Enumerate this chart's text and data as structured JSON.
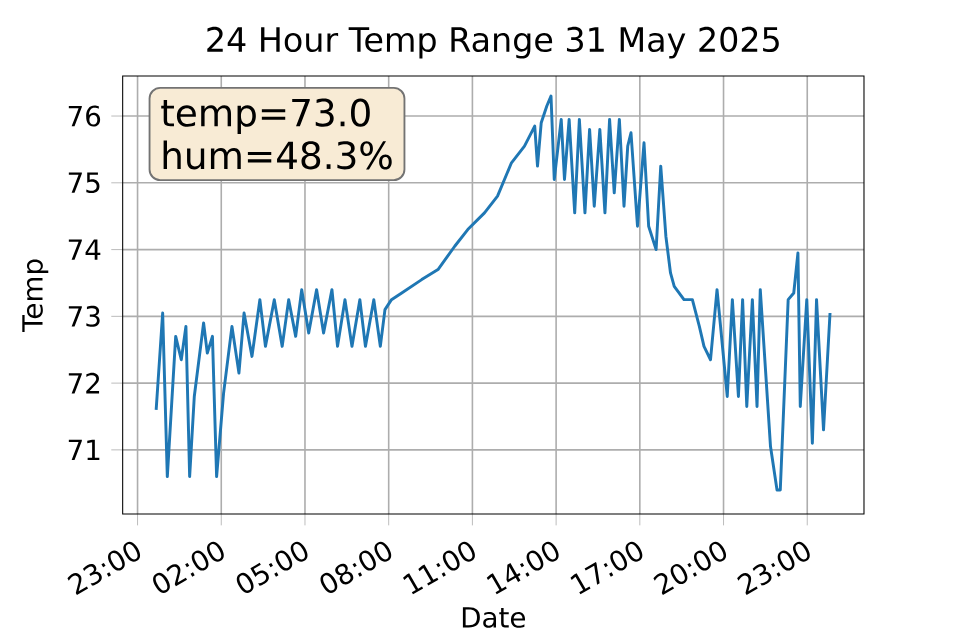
{
  "chart_data": {
    "type": "line",
    "title": "24 Hour Temp Range 31 May 2025",
    "xlabel": "Date",
    "ylabel": "Temp",
    "annotations": [
      "temp=73.0",
      "hum=48.3%"
    ],
    "xlim": [
      "2025-05-30T22:28",
      "2025-06-01T01:02"
    ],
    "ylim": [
      70.04,
      76.6
    ],
    "xticks": [
      {
        "value": "2025-05-30T23:00",
        "label": "23:00"
      },
      {
        "value": "2025-05-31T02:00",
        "label": "02:00"
      },
      {
        "value": "2025-05-31T05:00",
        "label": "05:00"
      },
      {
        "value": "2025-05-31T08:00",
        "label": "08:00"
      },
      {
        "value": "2025-05-31T11:00",
        "label": "11:00"
      },
      {
        "value": "2025-05-31T14:00",
        "label": "14:00"
      },
      {
        "value": "2025-05-31T17:00",
        "label": "17:00"
      },
      {
        "value": "2025-05-31T20:00",
        "label": "20:00"
      },
      {
        "value": "2025-05-31T23:00",
        "label": "23:00"
      }
    ],
    "yticks": [
      71,
      72,
      73,
      74,
      75,
      76
    ],
    "grid": true,
    "series": [
      {
        "color": "#1f77b4",
        "x": [
          "2025-05-30T23:40",
          "2025-05-30T23:54",
          "2025-05-31T00:04",
          "2025-05-31T00:22",
          "2025-05-31T00:34",
          "2025-05-31T00:44",
          "2025-05-31T00:52",
          "2025-05-31T01:02",
          "2025-05-31T01:22",
          "2025-05-31T01:30",
          "2025-05-31T01:41",
          "2025-05-31T01:50",
          "2025-05-31T02:05",
          "2025-05-31T02:23",
          "2025-05-31T02:38",
          "2025-05-31T02:49",
          "2025-05-31T03:06",
          "2025-05-31T03:23",
          "2025-05-31T03:35",
          "2025-05-31T03:54",
          "2025-05-31T04:11",
          "2025-05-31T04:25",
          "2025-05-31T04:40",
          "2025-05-31T04:53",
          "2025-05-31T05:08",
          "2025-05-31T05:25",
          "2025-05-31T05:40",
          "2025-05-31T05:58",
          "2025-05-31T06:10",
          "2025-05-31T06:26",
          "2025-05-31T06:41",
          "2025-05-31T06:58",
          "2025-05-31T07:10",
          "2025-05-31T07:28",
          "2025-05-31T07:42",
          "2025-05-31T07:52",
          "2025-05-31T08:06",
          "2025-05-31T08:28",
          "2025-05-31T09:11",
          "2025-05-31T09:46",
          "2025-05-31T10:22",
          "2025-05-31T10:50",
          "2025-05-31T11:26",
          "2025-05-31T11:54",
          "2025-05-31T12:24",
          "2025-05-31T12:52",
          "2025-05-31T13:14",
          "2025-05-31T13:20",
          "2025-05-31T13:28",
          "2025-05-31T13:40",
          "2025-05-31T13:49",
          "2025-05-31T13:56",
          "2025-05-31T14:11",
          "2025-05-31T14:18",
          "2025-05-31T14:28",
          "2025-05-31T14:40",
          "2025-05-31T14:50",
          "2025-05-31T15:02",
          "2025-05-31T15:12",
          "2025-05-31T15:22",
          "2025-05-31T15:34",
          "2025-05-31T15:45",
          "2025-05-31T15:55",
          "2025-05-31T16:05",
          "2025-05-31T16:16",
          "2025-05-31T16:26",
          "2025-05-31T16:34",
          "2025-05-31T16:41",
          "2025-05-31T16:55",
          "2025-05-31T17:09",
          "2025-05-31T17:19",
          "2025-05-31T17:35",
          "2025-05-31T17:45",
          "2025-05-31T17:56",
          "2025-05-31T18:06",
          "2025-05-31T18:14",
          "2025-05-31T18:35",
          "2025-05-31T18:53",
          "2025-05-31T19:08",
          "2025-05-31T19:18",
          "2025-05-31T19:32",
          "2025-05-31T19:46",
          "2025-05-31T20:08",
          "2025-05-31T20:19",
          "2025-05-31T20:32",
          "2025-05-31T20:41",
          "2025-05-31T20:50",
          "2025-05-31T21:02",
          "2025-05-31T21:12",
          "2025-05-31T21:19",
          "2025-05-31T21:41",
          "2025-05-31T21:55",
          "2025-05-31T22:02",
          "2025-05-31T22:19",
          "2025-05-31T22:31",
          "2025-05-31T22:40",
          "2025-05-31T22:45",
          "2025-05-31T22:59",
          "2025-05-31T23:11",
          "2025-05-31T23:20",
          "2025-05-31T23:35",
          "2025-05-31T23:49"
        ],
        "values": [
          71.6,
          73.05,
          70.6,
          72.7,
          72.35,
          72.85,
          70.6,
          71.8,
          72.9,
          72.45,
          72.7,
          70.6,
          71.85,
          72.85,
          72.15,
          73.05,
          72.4,
          73.25,
          72.55,
          73.25,
          72.55,
          73.25,
          72.7,
          73.4,
          72.75,
          73.4,
          72.75,
          73.4,
          72.55,
          73.25,
          72.55,
          73.25,
          72.55,
          73.25,
          72.55,
          73.1,
          73.25,
          73.35,
          73.55,
          73.7,
          74.05,
          74.3,
          74.55,
          74.8,
          75.3,
          75.55,
          75.85,
          75.25,
          75.9,
          76.15,
          76.3,
          75.05,
          75.95,
          75.05,
          75.95,
          74.55,
          75.95,
          74.55,
          75.8,
          74.65,
          75.8,
          74.55,
          75.95,
          74.85,
          75.95,
          74.65,
          75.55,
          75.75,
          74.35,
          75.6,
          74.35,
          74.0,
          75.25,
          74.2,
          73.65,
          73.45,
          73.25,
          73.25,
          72.85,
          72.55,
          72.35,
          73.4,
          71.8,
          73.25,
          71.8,
          73.25,
          71.65,
          73.25,
          71.65,
          73.4,
          71.05,
          70.4,
          70.4,
          73.25,
          73.35,
          73.95,
          71.65,
          73.25,
          71.1,
          73.25,
          71.3,
          73.05
        ]
      }
    ]
  }
}
